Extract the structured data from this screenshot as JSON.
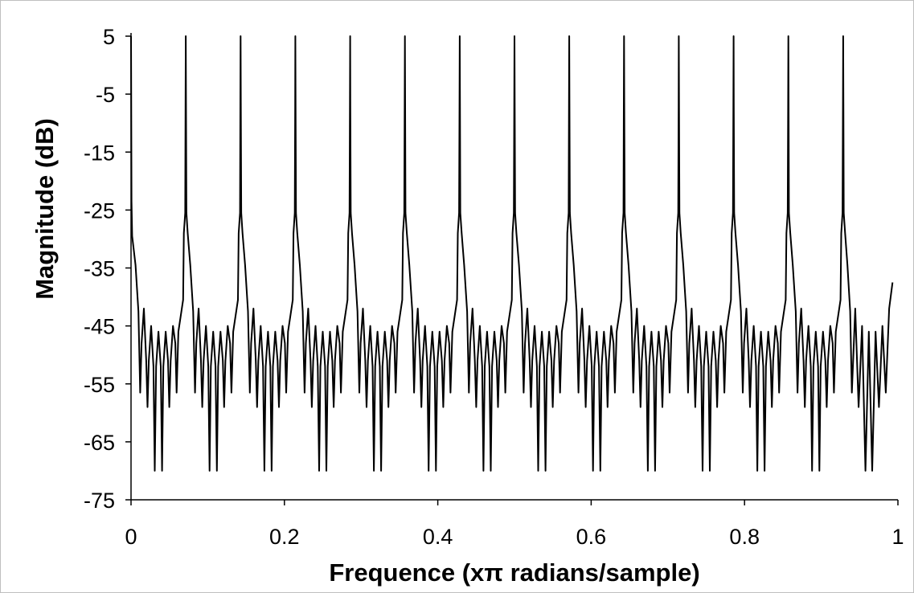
{
  "chart_data": {
    "type": "line",
    "title": "",
    "xlabel": "Frequence (xπ radians/sample)",
    "ylabel": "Magnitude (dB)",
    "xlim": [
      0,
      1
    ],
    "ylim": [
      -75,
      5
    ],
    "x_ticks": [
      0,
      0.2,
      0.4,
      0.6,
      0.8,
      1
    ],
    "x_tick_labels": [
      "0",
      "0.2",
      "0.4",
      "0.6",
      "0.8",
      "1"
    ],
    "y_ticks": [
      5,
      -5,
      -15,
      -25,
      -35,
      -45,
      -55,
      -65,
      -75
    ],
    "y_tick_labels": [
      "5",
      "-5",
      "-15",
      "-25",
      "-35",
      "-45",
      "-55",
      "-65",
      "-75"
    ],
    "grid": false,
    "legend": "none",
    "line_color": "#000000",
    "series": [
      {
        "peak_frequencies": [
          0,
          0.0714,
          0.1429,
          0.2143,
          0.2857,
          0.3571,
          0.4286,
          0.5,
          0.5714,
          0.6429,
          0.7143,
          0.7857,
          0.8571,
          0.9286
        ],
        "peak_magnitude": 5,
        "shoulder_magnitude": -29.5,
        "sidelobe_peaks": [
          -42,
          -45,
          -46,
          -46,
          -45,
          -42
        ],
        "null_magnitudes": [
          -56.5,
          -59,
          -70,
          -70,
          -59,
          -56.5
        ],
        "end_point": [
          0.993,
          -37.5
        ]
      }
    ]
  }
}
